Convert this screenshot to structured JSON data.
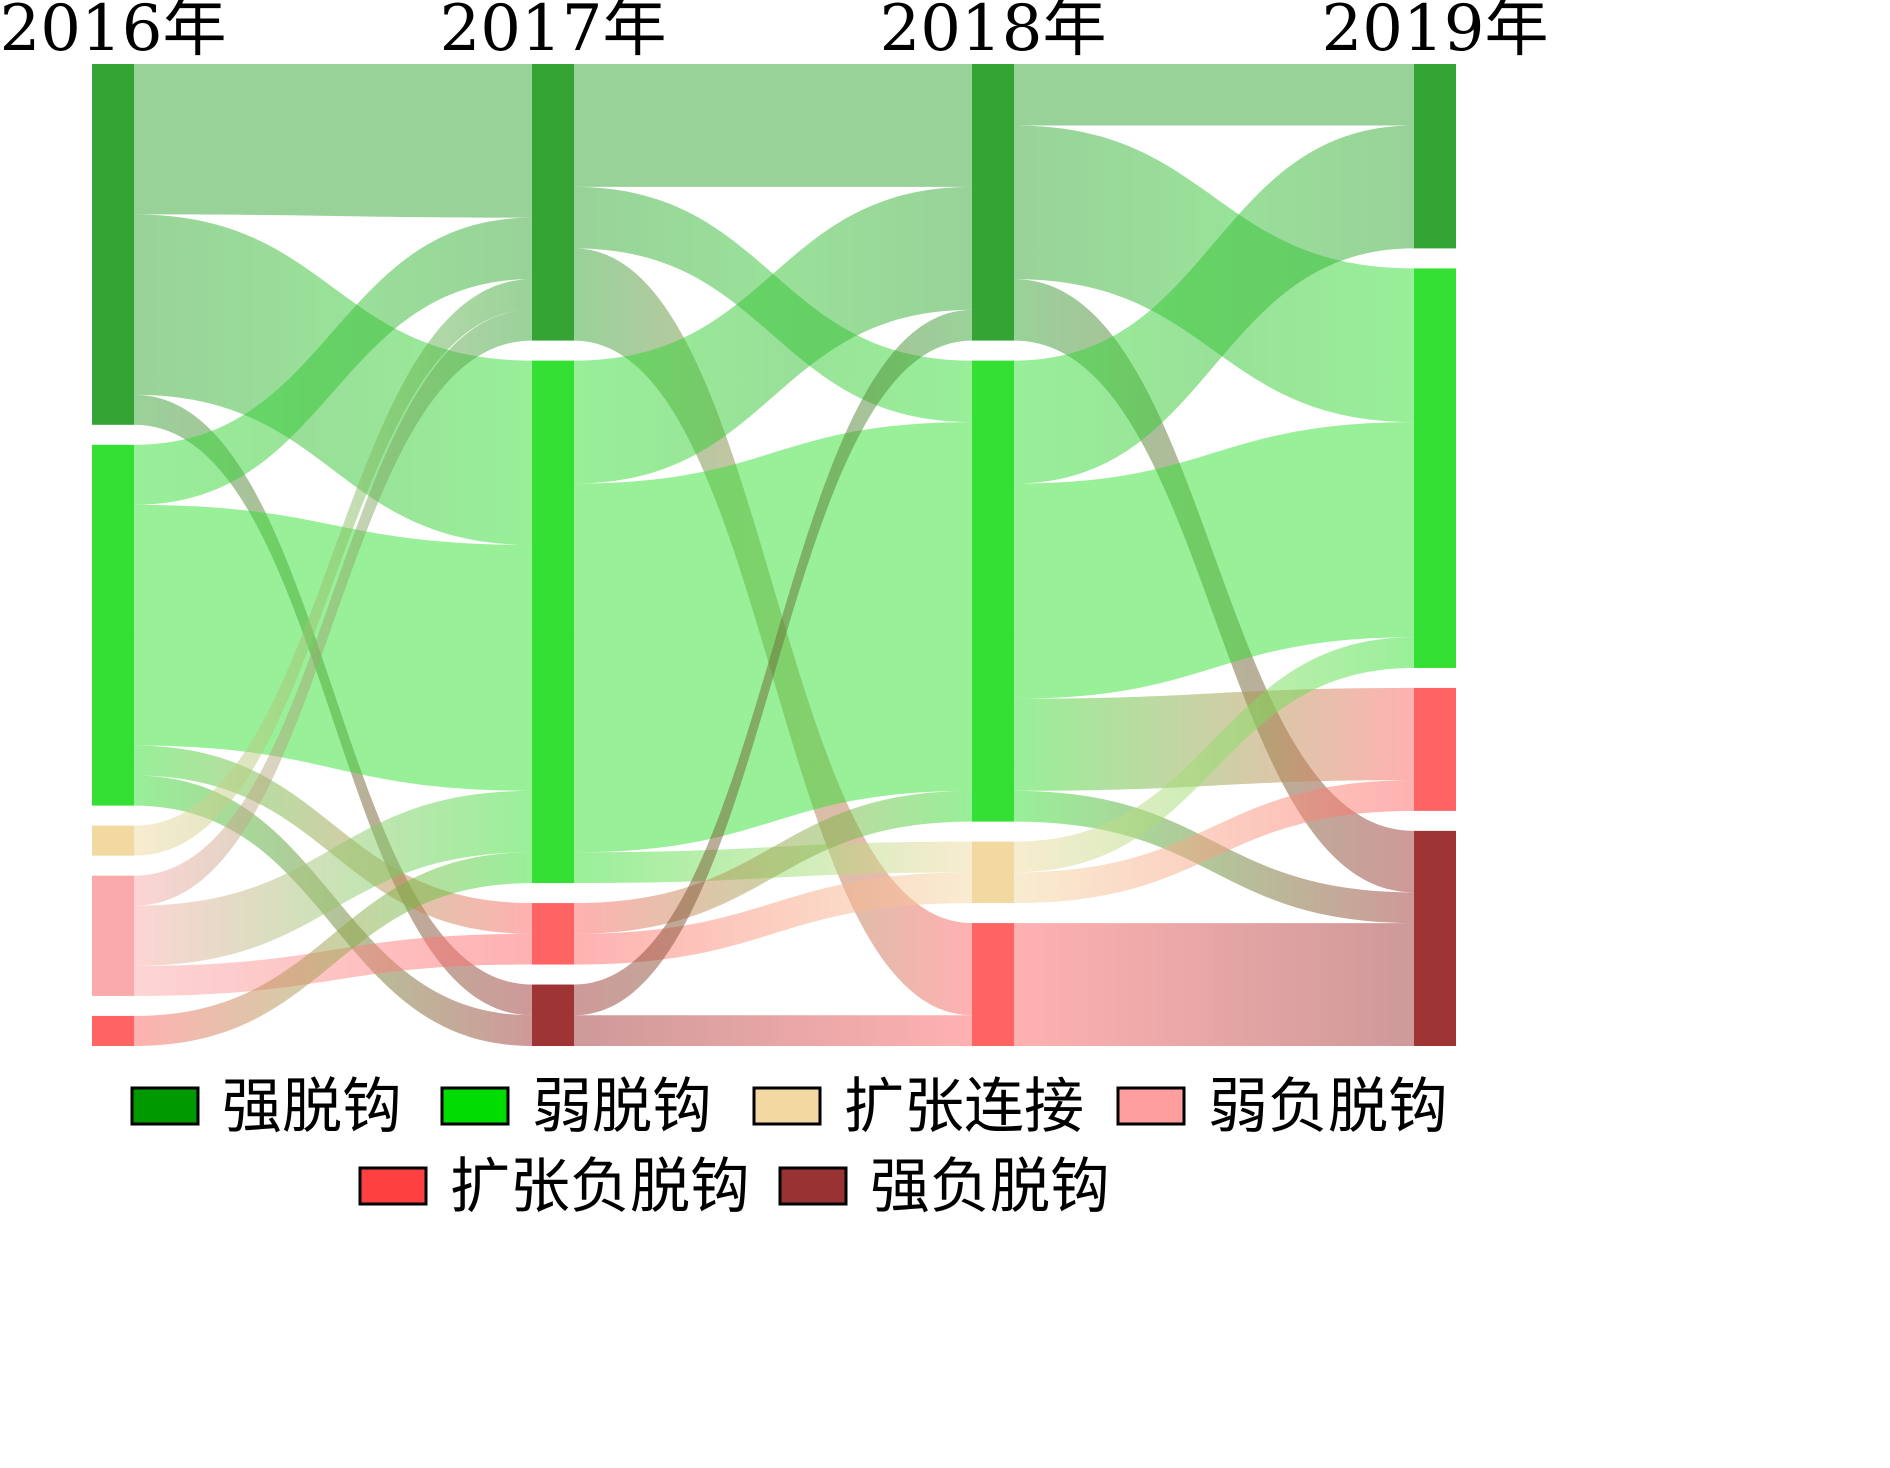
{
  "chart_data": {
    "type": "sankey",
    "title": "",
    "years": [
      "2016年",
      "2017年",
      "2018年",
      "2019年"
    ],
    "categories": [
      "强脱钩",
      "弱脱钩",
      "扩张连接",
      "弱负脱钩",
      "扩张负脱钩",
      "强负脱钩"
    ],
    "colors": {
      "强脱钩": "#34A534",
      "弱脱钩": "#33E033",
      "扩张连接": "#F2D9A2",
      "弱负脱钩": "#FAAAAA",
      "扩张负脱钩": "#FF6464",
      "强负脱钩": "#9E3434"
    },
    "legend_colors": {
      "强脱钩": "#009900",
      "弱脱钩": "#00DD00",
      "扩张连接": "#F2D9A2",
      "弱负脱钩": "#FF9E9E",
      "扩张负脱钩": "#FF4040",
      "强负脱钩": "#993333"
    },
    "nodes": [
      {
        "year": 0,
        "category": "强脱钩",
        "value": 36
      },
      {
        "year": 0,
        "category": "弱脱钩",
        "value": 36
      },
      {
        "year": 0,
        "category": "扩张连接",
        "value": 3
      },
      {
        "year": 0,
        "category": "弱负脱钩",
        "value": 12
      },
      {
        "year": 0,
        "category": "扩张负脱钩",
        "value": 3
      },
      {
        "year": 1,
        "category": "强脱钩",
        "value": 27
      },
      {
        "year": 1,
        "category": "弱脱钩",
        "value": 51
      },
      {
        "year": 1,
        "category": "扩张负脱钩",
        "value": 6
      },
      {
        "year": 1,
        "category": "强负脱钩",
        "value": 6
      },
      {
        "year": 2,
        "category": "强脱钩",
        "value": 27
      },
      {
        "year": 2,
        "category": "弱脱钩",
        "value": 45
      },
      {
        "year": 2,
        "category": "扩张连接",
        "value": 6
      },
      {
        "year": 2,
        "category": "扩张负脱钩",
        "value": 12
      },
      {
        "year": 3,
        "category": "强脱钩",
        "value": 18
      },
      {
        "year": 3,
        "category": "弱脱钩",
        "value": 39
      },
      {
        "year": 3,
        "category": "扩张负脱钩",
        "value": 12
      },
      {
        "year": 3,
        "category": "强负脱钩",
        "value": 21
      }
    ],
    "links": [
      {
        "from_year": 0,
        "source": "强脱钩",
        "target": "强脱钩",
        "value": 15
      },
      {
        "from_year": 0,
        "source": "强脱钩",
        "target": "弱脱钩",
        "value": 18
      },
      {
        "from_year": 0,
        "source": "强脱钩",
        "target": "强负脱钩",
        "value": 3
      },
      {
        "from_year": 0,
        "source": "弱脱钩",
        "target": "强脱钩",
        "value": 6
      },
      {
        "from_year": 0,
        "source": "弱脱钩",
        "target": "弱脱钩",
        "value": 24
      },
      {
        "from_year": 0,
        "source": "弱脱钩",
        "target": "扩张负脱钩",
        "value": 3
      },
      {
        "from_year": 0,
        "source": "弱脱钩",
        "target": "强负脱钩",
        "value": 3
      },
      {
        "from_year": 0,
        "source": "扩张连接",
        "target": "强脱钩",
        "value": 3
      },
      {
        "from_year": 0,
        "source": "弱负脱钩",
        "target": "强脱钩",
        "value": 3
      },
      {
        "from_year": 0,
        "source": "弱负脱钩",
        "target": "弱脱钩",
        "value": 6
      },
      {
        "from_year": 0,
        "source": "弱负脱钩",
        "target": "扩张负脱钩",
        "value": 3
      },
      {
        "from_year": 0,
        "source": "扩张负脱钩",
        "target": "弱脱钩",
        "value": 3
      },
      {
        "from_year": 1,
        "source": "强脱钩",
        "target": "强脱钩",
        "value": 12
      },
      {
        "from_year": 1,
        "source": "强脱钩",
        "target": "弱脱钩",
        "value": 6
      },
      {
        "from_year": 1,
        "source": "强脱钩",
        "target": "扩张负脱钩",
        "value": 9
      },
      {
        "from_year": 1,
        "source": "弱脱钩",
        "target": "强脱钩",
        "value": 12
      },
      {
        "from_year": 1,
        "source": "弱脱钩",
        "target": "弱脱钩",
        "value": 36
      },
      {
        "from_year": 1,
        "source": "弱脱钩",
        "target": "扩张连接",
        "value": 3
      },
      {
        "from_year": 1,
        "source": "扩张负脱钩",
        "target": "弱脱钩",
        "value": 3
      },
      {
        "from_year": 1,
        "source": "扩张负脱钩",
        "target": "扩张连接",
        "value": 3
      },
      {
        "from_year": 1,
        "source": "强负脱钩",
        "target": "强脱钩",
        "value": 3
      },
      {
        "from_year": 1,
        "source": "强负脱钩",
        "target": "扩张负脱钩",
        "value": 3
      },
      {
        "from_year": 2,
        "source": "强脱钩",
        "target": "强脱钩",
        "value": 6
      },
      {
        "from_year": 2,
        "source": "强脱钩",
        "target": "弱脱钩",
        "value": 15
      },
      {
        "from_year": 2,
        "source": "强脱钩",
        "target": "强负脱钩",
        "value": 6
      },
      {
        "from_year": 2,
        "source": "弱脱钩",
        "target": "强脱钩",
        "value": 12
      },
      {
        "from_year": 2,
        "source": "弱脱钩",
        "target": "弱脱钩",
        "value": 21
      },
      {
        "from_year": 2,
        "source": "弱脱钩",
        "target": "扩张负脱钩",
        "value": 9
      },
      {
        "from_year": 2,
        "source": "弱脱钩",
        "target": "强负脱钩",
        "value": 3
      },
      {
        "from_year": 2,
        "source": "扩张连接",
        "target": "弱脱钩",
        "value": 3
      },
      {
        "from_year": 2,
        "source": "扩张连接",
        "target": "扩张负脱钩",
        "value": 3
      },
      {
        "from_year": 2,
        "source": "扩张负脱钩",
        "target": "强负脱钩",
        "value": 12
      }
    ],
    "legend": {
      "position": "bottom",
      "rows": [
        [
          "强脱钩",
          "弱脱钩",
          "扩张连接",
          "弱负脱钩"
        ],
        [
          "扩张负脱钩",
          "强负脱钩"
        ]
      ]
    }
  }
}
